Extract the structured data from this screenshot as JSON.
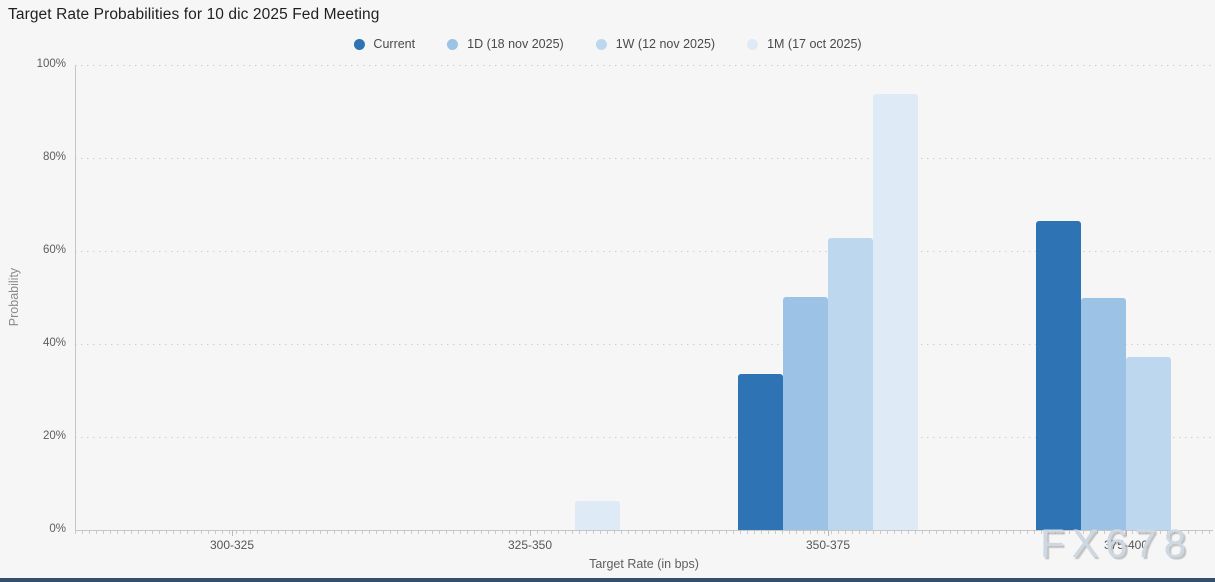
{
  "page": {
    "title": "Target Rate Probabilities for 10 dic 2025 Fed Meeting",
    "watermark": "FX678"
  },
  "chart_data": {
    "type": "bar",
    "title": "Target Rate Probabilities for 10 dic 2025 Fed Meeting",
    "xlabel": "Target Rate (in bps)",
    "ylabel": "Probability",
    "categories": [
      "300-325",
      "325-350",
      "350-375",
      "375-400"
    ],
    "yticks": [
      "0%",
      "20%",
      "40%",
      "60%",
      "80%",
      "100%"
    ],
    "ylim": [
      0,
      100
    ],
    "grid": "horizontal-dotted",
    "legend_position": "top-center",
    "series": [
      {
        "name": "Current",
        "color": "#2e74b5",
        "values": [
          0,
          0,
          33.5,
          66.5
        ]
      },
      {
        "name": "1D (18 nov 2025)",
        "color": "#9cc2e5",
        "values": [
          0,
          0,
          50.2,
          49.8
        ]
      },
      {
        "name": "1W (12 nov 2025)",
        "color": "#bdd7ee",
        "values": [
          0,
          0,
          62.8,
          37.2
        ]
      },
      {
        "name": "1M (17 oct 2025)",
        "color": "#deeaf6",
        "values": [
          0,
          6.3,
          93.7,
          0
        ]
      }
    ]
  }
}
